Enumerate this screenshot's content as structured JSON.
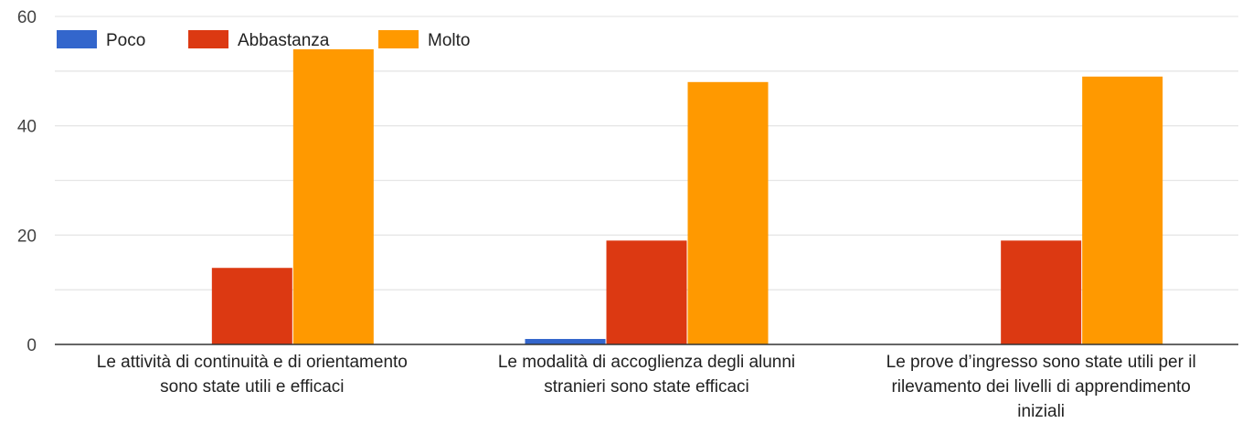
{
  "chart_data": {
    "type": "bar",
    "title": "",
    "xlabel": "",
    "ylabel": "",
    "ylim": [
      0,
      60
    ],
    "yticks": [
      0,
      20,
      40,
      60
    ],
    "grid": true,
    "legend_position": "top-left",
    "categories": [
      [
        "Le attività di continuità e di orientamento",
        "sono state utili e efficaci"
      ],
      [
        "Le modalità di accoglienza degli alunni",
        "stranieri sono state efficaci"
      ],
      [
        "Le prove d’ingresso sono state utili per il",
        "rilevamento dei livelli di apprendimento",
        "iniziali"
      ]
    ],
    "series": [
      {
        "name": "Poco",
        "color": "#3366cc",
        "values": [
          0,
          1,
          0
        ]
      },
      {
        "name": "Abbastanza",
        "color": "#dc3912",
        "values": [
          14,
          19,
          19
        ]
      },
      {
        "name": "Molto",
        "color": "#ff9900",
        "values": [
          54,
          48,
          49
        ]
      }
    ]
  }
}
